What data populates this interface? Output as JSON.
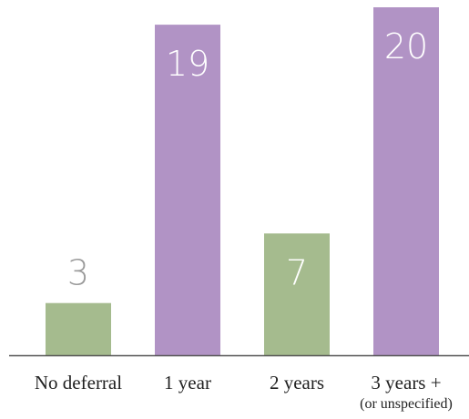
{
  "chart_data": {
    "type": "bar",
    "categories": [
      "No deferral",
      "1 year",
      "2 years",
      "3 years +"
    ],
    "category_sublabels": [
      "",
      "",
      "",
      "(or unspecified)"
    ],
    "values": [
      3,
      19,
      7,
      20
    ],
    "ylim": [
      0,
      20
    ],
    "grid": false,
    "legend": "none",
    "title": "",
    "xlabel": "",
    "ylabel": "",
    "colors": {
      "green": "#a5bb8e",
      "purple": "#b193c5",
      "axis": "#555555",
      "label_on_light": "#9a9a9a",
      "label_on_bar": "#ffffff",
      "tick_text": "#222222"
    },
    "bar_colors": [
      "green",
      "purple",
      "green",
      "purple"
    ],
    "value_label_placement": [
      "above",
      "inside",
      "inside",
      "inside"
    ]
  }
}
